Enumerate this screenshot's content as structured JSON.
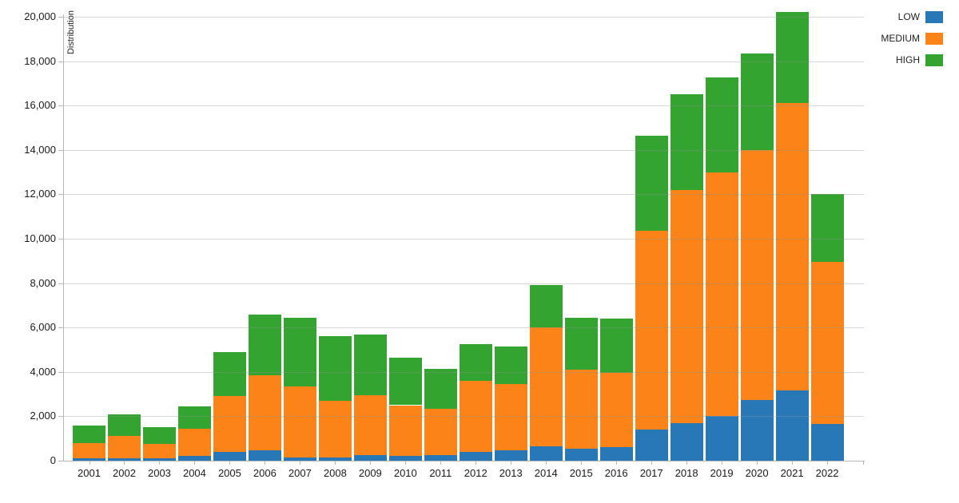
{
  "y_axis": {
    "title": "Distribution",
    "ticks": [
      {
        "value": 0,
        "label": "0"
      },
      {
        "value": 2000,
        "label": "2,000"
      },
      {
        "value": 4000,
        "label": "4,000"
      },
      {
        "value": 6000,
        "label": "6,000"
      },
      {
        "value": 8000,
        "label": "8,000"
      },
      {
        "value": 10000,
        "label": "10,000"
      },
      {
        "value": 12000,
        "label": "12,000"
      },
      {
        "value": 14000,
        "label": "14,000"
      },
      {
        "value": 16000,
        "label": "16,000"
      },
      {
        "value": 18000,
        "label": "18,000"
      },
      {
        "value": 20000,
        "label": "20,000"
      }
    ]
  },
  "legend": {
    "position": "top-right",
    "items": [
      {
        "label": "LOW",
        "color": "#2878b8"
      },
      {
        "label": "MEDIUM",
        "color": "#fb8317"
      },
      {
        "label": "HIGH",
        "color": "#33a42f"
      }
    ]
  },
  "chart_data": {
    "type": "bar",
    "stacked": true,
    "title": "",
    "xlabel": "",
    "ylabel": "Distribution",
    "ylim": [
      0,
      20000
    ],
    "grid": true,
    "legend_position": "top-right",
    "categories": [
      "2001",
      "2002",
      "2003",
      "2004",
      "2005",
      "2006",
      "2007",
      "2008",
      "2009",
      "2010",
      "2011",
      "2012",
      "2013",
      "2014",
      "2015",
      "2016",
      "2017",
      "2018",
      "2019",
      "2020",
      "2021",
      "2022"
    ],
    "series": [
      {
        "name": "LOW",
        "color": "#2878b8",
        "values": [
          100,
          100,
          100,
          200,
          400,
          450,
          150,
          150,
          250,
          200,
          250,
          400,
          450,
          650,
          550,
          600,
          1400,
          1700,
          2000,
          2750,
          3150,
          1650
        ]
      },
      {
        "name": "MEDIUM",
        "color": "#fb8317",
        "values": [
          700,
          1000,
          650,
          1250,
          2500,
          3400,
          3200,
          2550,
          2700,
          2300,
          2100,
          3200,
          3000,
          5350,
          3550,
          3350,
          8950,
          10500,
          11000,
          11250,
          12950,
          7300
        ]
      },
      {
        "name": "HIGH",
        "color": "#33a42f",
        "values": [
          800,
          1000,
          750,
          1000,
          2000,
          2750,
          3100,
          2900,
          2750,
          2150,
          1800,
          1650,
          1700,
          1900,
          2350,
          2450,
          4300,
          4300,
          4250,
          4350,
          4100,
          3050
        ]
      }
    ]
  }
}
